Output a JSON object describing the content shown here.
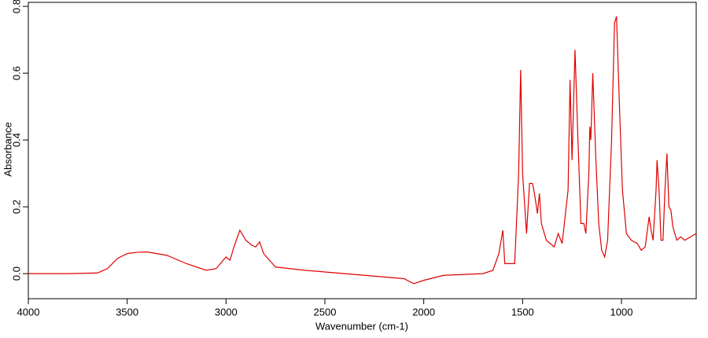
{
  "chart_data": {
    "type": "line",
    "x_label": "Wavenumber (cm-1)",
    "y_label": "Absorbance",
    "xlim": [
      4000,
      622
    ],
    "ylim": [
      -0.075,
      0.812
    ],
    "xticks": [
      4000,
      3500,
      3000,
      2500,
      2000,
      1500,
      1000
    ],
    "yticks": [
      {
        "value": 0,
        "label": "0.0"
      },
      0.2,
      0.4,
      0.6,
      0.8
    ],
    "series": [
      {
        "name": "Absorbance",
        "color": "#e00000",
        "x": [
          4000,
          3800,
          3650,
          3600,
          3550,
          3500,
          3450,
          3400,
          3300,
          3200,
          3100,
          3050,
          3000,
          2980,
          2960,
          2930,
          2900,
          2870,
          2850,
          2830,
          2810,
          2750,
          2600,
          2400,
          2200,
          2100,
          2050,
          2000,
          1900,
          1700,
          1650,
          1620,
          1600,
          1590,
          1540,
          1520,
          1510,
          1500,
          1480,
          1465,
          1450,
          1440,
          1425,
          1415,
          1405,
          1380,
          1340,
          1320,
          1300,
          1270,
          1260,
          1250,
          1235,
          1220,
          1205,
          1190,
          1180,
          1165,
          1160,
          1155,
          1145,
          1130,
          1115,
          1100,
          1085,
          1070,
          1050,
          1035,
          1025,
          1010,
          995,
          975,
          950,
          920,
          900,
          880,
          860,
          850,
          840,
          825,
          820,
          810,
          800,
          790,
          780,
          770,
          760,
          750,
          740,
          720,
          700,
          680,
          650,
          622
        ],
        "values": [
          0.0,
          0.0,
          0.002,
          0.015,
          0.045,
          0.06,
          0.064,
          0.065,
          0.055,
          0.03,
          0.01,
          0.015,
          0.05,
          0.04,
          0.08,
          0.13,
          0.1,
          0.085,
          0.08,
          0.095,
          0.06,
          0.02,
          0.01,
          0.0,
          -0.01,
          -0.015,
          -0.03,
          -0.02,
          -0.005,
          0.0,
          0.01,
          0.06,
          0.13,
          0.03,
          0.03,
          0.3,
          0.61,
          0.3,
          0.12,
          0.27,
          0.27,
          0.24,
          0.18,
          0.24,
          0.15,
          0.1,
          0.08,
          0.12,
          0.09,
          0.25,
          0.58,
          0.34,
          0.67,
          0.4,
          0.15,
          0.15,
          0.12,
          0.3,
          0.44,
          0.4,
          0.6,
          0.35,
          0.15,
          0.07,
          0.05,
          0.1,
          0.4,
          0.75,
          0.77,
          0.5,
          0.25,
          0.12,
          0.1,
          0.09,
          0.07,
          0.08,
          0.17,
          0.13,
          0.1,
          0.25,
          0.34,
          0.25,
          0.1,
          0.1,
          0.25,
          0.36,
          0.2,
          0.19,
          0.14,
          0.1,
          0.11,
          0.1,
          0.11,
          0.12
        ]
      }
    ]
  }
}
